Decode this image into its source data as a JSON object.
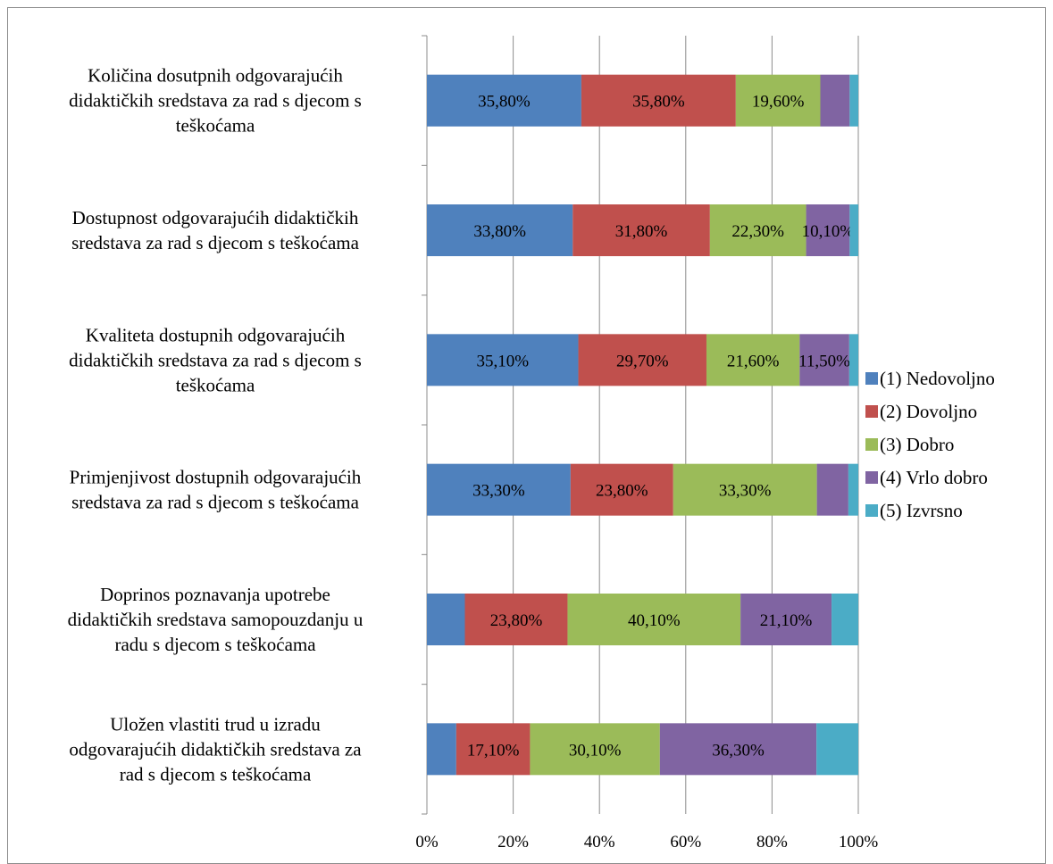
{
  "chart_data": {
    "type": "bar",
    "orientation": "horizontal",
    "stacked": "percent",
    "categories": [
      [
        "Količina dosutpnih odgovarajućih",
        "didaktičkih sredstava za rad s djecom s",
        "teškoćama"
      ],
      [
        "Dostupnost odgovarajućih didaktičkih",
        "sredstava za rad s djecom s teškoćama"
      ],
      [
        "Kvaliteta dostupnih odgovarajućih",
        "didaktičkih sredstava za rad s djecom s",
        "teškoćama"
      ],
      [
        "Primjenjivost dostupnih odgovarajućih",
        "sredstava za rad s djecom s teškoćama"
      ],
      [
        "Doprinos poznavanja upotrebe",
        "didaktičkih sredstava samopouzdanju u",
        "radu s djecom s teškoćama"
      ],
      [
        "Uložen vlastiti trud u izradu",
        "odgovarajućih didaktičkih sredstava za",
        "rad s djecom s teškoćama"
      ]
    ],
    "series": [
      {
        "name": "(1) Nedovoljno",
        "color": "#4f81bd",
        "values": [
          35.8,
          33.8,
          35.1,
          33.3,
          8.8,
          6.8
        ]
      },
      {
        "name": "(2) Dovoljno",
        "color": "#c0504d",
        "values": [
          35.8,
          31.8,
          29.7,
          23.8,
          23.8,
          17.1
        ]
      },
      {
        "name": "(3) Dobro",
        "color": "#9bbb59",
        "values": [
          19.6,
          22.3,
          21.6,
          33.3,
          40.1,
          30.1
        ]
      },
      {
        "name": "(4) Vrlo dobro",
        "color": "#8064a2",
        "values": [
          6.8,
          10.1,
          11.5,
          7.3,
          21.1,
          36.3
        ]
      },
      {
        "name": "(5) Izvrsno",
        "color": "#4bacc6",
        "values": [
          2.0,
          2.0,
          2.1,
          2.3,
          6.2,
          9.7
        ]
      }
    ],
    "data_labels": [
      [
        "35,80%",
        "35,80%",
        "19,60%",
        "",
        ""
      ],
      [
        "33,80%",
        "31,80%",
        "22,30%",
        "10,10%",
        ""
      ],
      [
        "35,10%",
        "29,70%",
        "21,60%",
        "11,50%",
        ""
      ],
      [
        "33,30%",
        "23,80%",
        "33,30%",
        "",
        ""
      ],
      [
        "",
        "23,80%",
        "40,10%",
        "21,10%",
        ""
      ],
      [
        "",
        "17,10%",
        "30,10%",
        "36,30%",
        ""
      ]
    ],
    "x_ticks": [
      "0%",
      "20%",
      "40%",
      "60%",
      "80%",
      "100%"
    ],
    "xlim": [
      0,
      100
    ],
    "grid": "vertical",
    "legend_position": "right",
    "title": "",
    "xlabel": "",
    "ylabel": ""
  }
}
